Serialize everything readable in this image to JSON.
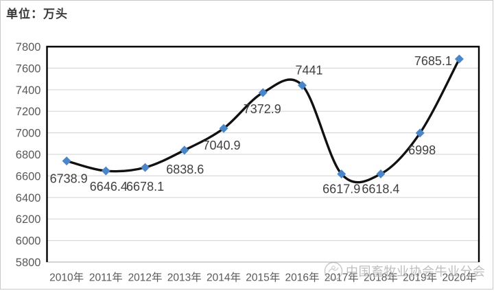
{
  "title": "单位：万头",
  "watermark": {
    "icon": "association-logo",
    "text": "中国畜牧业协会牛业分会"
  },
  "chart_data": {
    "type": "line",
    "title": "单位：万头",
    "xlabel": "",
    "ylabel": "",
    "x": [
      "2010年",
      "2011年",
      "2012年",
      "2013年",
      "2014年",
      "2015年",
      "2016年",
      "2017年",
      "2018年",
      "2019年",
      "2020年"
    ],
    "values": [
      6738.9,
      6646.4,
      6678.1,
      6838.6,
      7040.9,
      7372.9,
      7441,
      6617.9,
      6618.4,
      6998,
      7685.1
    ],
    "point_labels": [
      "6738.9",
      "6646.4",
      "6678.1",
      "6838.6",
      "7040.9",
      "7372.9",
      "7441",
      "6617.9",
      "6618.4",
      "6998",
      "7685.1"
    ],
    "ylim": [
      5800,
      7800
    ],
    "ytick_step": 200,
    "yticks": [
      "7800",
      "7600",
      "7400",
      "7200",
      "7000",
      "6800",
      "6600",
      "6400",
      "6200",
      "6000",
      "5800"
    ],
    "grid": "horizontal",
    "legend": "none",
    "smooth": true,
    "marker": "diamond"
  },
  "colors": {
    "line": "#111111",
    "marker": "#4a86c8",
    "gridline": "#d9d9d9",
    "plot_border": "#000000",
    "bottom_axis": "#c6c6c6",
    "axis_text": "#595959",
    "data_label_text": "#404040",
    "frame_border": "#c9c9c9",
    "watermark": "#8a8a8a"
  }
}
